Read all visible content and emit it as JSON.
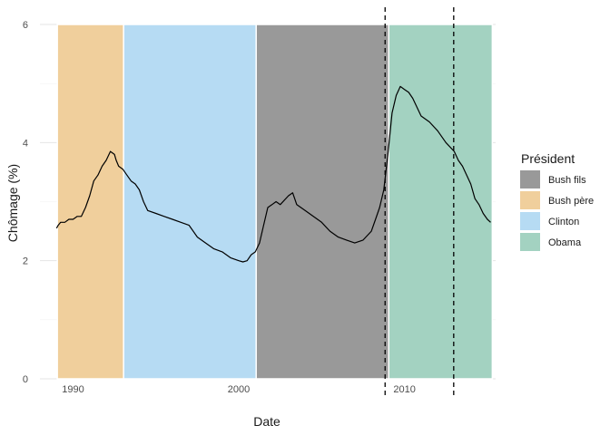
{
  "chart_data": {
    "type": "line",
    "title": "",
    "xlabel": "Date",
    "ylabel": "Chômage (%)",
    "xlim": [
      1988,
      2015.5
    ],
    "ylim": [
      0,
      6
    ],
    "x_ticks": [
      1990,
      2000,
      2010
    ],
    "y_ticks": [
      0,
      2,
      4,
      6
    ],
    "grid": true,
    "legend": {
      "title": "Président",
      "position": "right",
      "entries": [
        {
          "label": "Bush fils",
          "color": "#999999"
        },
        {
          "label": "Bush père",
          "color": "#f0cf9c"
        },
        {
          "label": "Clinton",
          "color": "#b6dbf3"
        },
        {
          "label": "Obama",
          "color": "#a3d2c1"
        }
      ]
    },
    "periods": [
      {
        "president": "Bush père",
        "start": 1989.05,
        "end": 1993.05,
        "color": "#f0cf9c"
      },
      {
        "president": "Clinton",
        "start": 1993.05,
        "end": 2001.05,
        "color": "#b6dbf3"
      },
      {
        "president": "Bush fils",
        "start": 2001.05,
        "end": 2009.05,
        "color": "#999999"
      },
      {
        "president": "Obama",
        "start": 2009.05,
        "end": 2015.3,
        "color": "#a3d2c1"
      }
    ],
    "vlines": [
      2008.83,
      2012.97
    ],
    "series": [
      {
        "x": [
          1989.0,
          1989.1,
          1989.25,
          1989.5,
          1989.75,
          1990.0,
          1990.25,
          1990.5,
          1990.75,
          1991.0,
          1991.25,
          1991.5,
          1991.75,
          1992.0,
          1992.25,
          1992.5,
          1992.6,
          1992.75,
          1993.0,
          1993.25,
          1993.5,
          1993.75,
          1994.0,
          1994.25,
          1994.5,
          1995.0,
          1995.5,
          1996.0,
          1996.5,
          1997.0,
          1997.5,
          1998.0,
          1998.5,
          1999.0,
          1999.5,
          2000.0,
          2000.25,
          2000.5,
          2000.75,
          2001.0,
          2001.25,
          2001.5,
          2001.75,
          2002.0,
          2002.25,
          2002.5,
          2003.0,
          2003.25,
          2003.5,
          2003.75,
          2004.0,
          2004.5,
          2005.0,
          2005.5,
          2006.0,
          2006.5,
          2007.0,
          2007.5,
          2008.0,
          2008.25,
          2008.5,
          2008.75,
          2009.0,
          2009.25,
          2009.5,
          2009.75,
          2010.0,
          2010.25,
          2010.5,
          2010.75,
          2011.0,
          2011.5,
          2012.0,
          2012.5,
          2013.0,
          2013.25,
          2013.5,
          2014.0,
          2014.25,
          2014.5,
          2014.75,
          2015.0,
          2015.2
        ],
        "y": [
          2.55,
          2.6,
          2.65,
          2.65,
          2.7,
          2.7,
          2.75,
          2.75,
          2.9,
          3.1,
          3.35,
          3.45,
          3.6,
          3.7,
          3.85,
          3.8,
          3.7,
          3.6,
          3.55,
          3.45,
          3.35,
          3.3,
          3.2,
          3.0,
          2.85,
          2.8,
          2.75,
          2.7,
          2.65,
          2.6,
          2.4,
          2.3,
          2.2,
          2.15,
          2.05,
          2.0,
          1.98,
          2.0,
          2.1,
          2.15,
          2.3,
          2.6,
          2.9,
          2.95,
          3.0,
          2.95,
          3.1,
          3.15,
          2.95,
          2.9,
          2.85,
          2.75,
          2.65,
          2.5,
          2.4,
          2.35,
          2.3,
          2.35,
          2.5,
          2.7,
          2.9,
          3.2,
          3.8,
          4.5,
          4.8,
          4.95,
          4.9,
          4.85,
          4.75,
          4.6,
          4.45,
          4.35,
          4.2,
          4.0,
          3.85,
          3.7,
          3.6,
          3.3,
          3.05,
          2.95,
          2.8,
          2.7,
          2.65
        ]
      }
    ]
  }
}
